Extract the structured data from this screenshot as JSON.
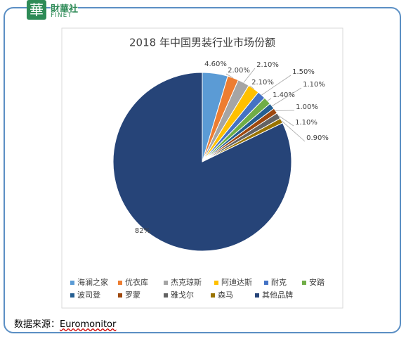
{
  "logo": {
    "icon": "華",
    "name": "財華社",
    "brand": "FINET"
  },
  "chart_data": {
    "type": "pie",
    "title": "2018 年中国男装行业市场份额",
    "categories": [
      "海澜之家",
      "优衣库",
      "杰克琼斯",
      "阿迪达斯",
      "耐克",
      "安踏",
      "波司登",
      "罗蒙",
      "雅戈尔",
      "森马",
      "其他品牌"
    ],
    "values": [
      4.6,
      2.0,
      2.1,
      2.1,
      1.5,
      1.4,
      1.1,
      1.0,
      1.1,
      0.9,
      82
    ],
    "value_labels": [
      "4.60%",
      "2.00%",
      "2.10%",
      "2.10%",
      "1.50%",
      "1.40%",
      "1.10%",
      "1.00%",
      "1.10%",
      "0.90%",
      "82%"
    ],
    "colors": [
      "#5b9bd5",
      "#ed7d31",
      "#a5a5a5",
      "#ffc000",
      "#4472c4",
      "#70ad47",
      "#255e91",
      "#9e480e",
      "#636363",
      "#997300",
      "#264478"
    ],
    "legend": "bottom"
  },
  "source": {
    "label": "数据来源：",
    "name": "Euromonitor"
  }
}
